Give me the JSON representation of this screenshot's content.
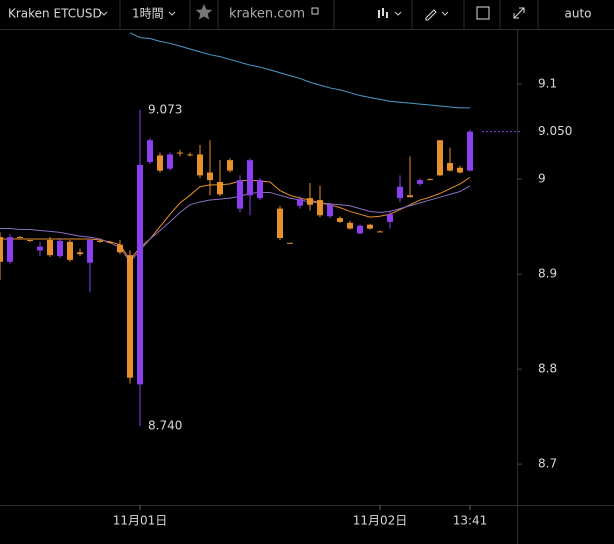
{
  "toolbar": {
    "symbol": "Kraken ETCUSD",
    "interval": "1時間",
    "site": "kraken.com",
    "scale": "auto"
  },
  "chart_data": {
    "type": "candlestick",
    "x": [
      null,
      null,
      null,
      null,
      null,
      null,
      null,
      null,
      null,
      null,
      null,
      null,
      null,
      null,
      "11月01日",
      null,
      null,
      null,
      null,
      null,
      null,
      null,
      null,
      null,
      null,
      null,
      null,
      null,
      null,
      null,
      null,
      null,
      null,
      null,
      null,
      null,
      null,
      null,
      "11月02日",
      null,
      null,
      null,
      null,
      null,
      null,
      null,
      null,
      "13:41"
    ],
    "open": [
      8.939,
      8.913,
      8.939,
      8.936,
      8.925,
      8.936,
      8.919,
      8.934,
      8.923,
      8.912,
      8.935,
      8.934,
      8.931,
      8.92,
      8.784,
      9.018,
      9.025,
      9.011,
      9.028,
      9.026,
      9.026,
      9.007,
      8.997,
      9.02,
      8.969,
      8.983,
      8.98,
      null,
      8.969,
      8.933,
      8.972,
      8.98,
      8.978,
      8.961,
      8.959,
      8.954,
      8.943,
      8.952,
      8.945,
      8.955,
      8.98,
      8.983,
      8.995,
      9.0,
      9.041,
      9.017,
      9.012,
      9.009
    ],
    "high": [
      8.944,
      8.942,
      8.94,
      8.936,
      8.934,
      8.939,
      8.938,
      8.936,
      8.927,
      8.938,
      8.936,
      8.935,
      8.936,
      8.925,
      9.073,
      9.043,
      9.028,
      9.028,
      9.031,
      9.028,
      9.036,
      9.041,
      9.02,
      9.022,
      9.004,
      9.022,
      9.001,
      null,
      8.972,
      8.933,
      8.982,
      8.996,
      8.993,
      8.975,
      8.961,
      8.956,
      8.952,
      8.953,
      8.946,
      8.967,
      9.004,
      9.024,
      9.001,
      9.001,
      9.041,
      9.033,
      9.014,
      9.052
    ],
    "low": [
      8.894,
      8.911,
      8.938,
      8.934,
      8.919,
      8.918,
      8.917,
      8.913,
      8.919,
      8.881,
      8.933,
      8.933,
      8.921,
      8.785,
      8.74,
      9.016,
      9.007,
      9.009,
      9.024,
      9.024,
      9.001,
      8.983,
      8.982,
      9.007,
      8.965,
      8.962,
      8.978,
      null,
      8.936,
      8.932,
      8.969,
      8.967,
      8.96,
      8.959,
      8.954,
      8.947,
      8.942,
      8.947,
      8.944,
      8.948,
      8.976,
      8.981,
      8.993,
      8.999,
      9.003,
      9.008,
      9.006,
      9.008
    ],
    "close": [
      8.913,
      8.939,
      8.938,
      8.935,
      8.929,
      8.92,
      8.935,
      8.915,
      8.921,
      8.936,
      8.934,
      8.933,
      8.923,
      8.791,
      9.015,
      9.041,
      9.009,
      9.026,
      9.027,
      9.025,
      9.004,
      8.999,
      8.984,
      9.009,
      8.999,
      9.02,
      8.999,
      null,
      8.938,
      8.932,
      8.979,
      8.973,
      8.962,
      8.973,
      8.955,
      8.948,
      8.951,
      8.948,
      8.944,
      8.963,
      8.992,
      8.981,
      8.999,
      8.999,
      9.004,
      9.009,
      9.007,
      9.05
    ],
    "up_color": "#8a3ff0",
    "down_color": "#e8902c",
    "series": [
      {
        "color": "#4a9cc8",
        "values": [
          null,
          null,
          null,
          null,
          null,
          null,
          null,
          null,
          null,
          null,
          null,
          null,
          null,
          9.154,
          9.149,
          9.148,
          9.145,
          9.143,
          9.14,
          9.137,
          9.134,
          9.131,
          9.129,
          9.126,
          9.123,
          9.12,
          9.118,
          9.115,
          9.112,
          9.109,
          9.106,
          9.102,
          9.099,
          9.096,
          9.094,
          9.091,
          9.088,
          9.086,
          9.084,
          9.082,
          9.081,
          9.08,
          9.079,
          9.078,
          9.077,
          9.076,
          9.075,
          9.075
        ]
      },
      {
        "color": "#e8902c",
        "values": [
          8.937,
          8.937,
          8.937,
          8.937,
          8.937,
          8.937,
          8.937,
          8.937,
          8.937,
          8.937,
          8.936,
          8.934,
          8.931,
          8.915,
          8.928,
          8.937,
          8.95,
          8.963,
          8.975,
          8.983,
          8.992,
          8.994,
          8.994,
          8.995,
          8.998,
          8.999,
          8.998,
          8.997,
          8.988,
          8.983,
          8.98,
          8.978,
          8.975,
          8.973,
          8.97,
          8.966,
          8.963,
          8.96,
          8.961,
          8.963,
          8.968,
          8.973,
          8.978,
          8.981,
          8.985,
          8.99,
          8.995,
          9.002
        ]
      },
      {
        "color": "#8a6fc0",
        "values": [
          8.948,
          8.948,
          8.947,
          8.947,
          8.946,
          8.945,
          8.944,
          8.942,
          8.94,
          8.939,
          8.937,
          8.933,
          8.928,
          8.913,
          8.925,
          8.937,
          8.946,
          8.955,
          8.965,
          8.973,
          8.976,
          8.978,
          8.979,
          8.98,
          8.982,
          8.985,
          8.986,
          8.986,
          8.983,
          8.98,
          8.978,
          8.976,
          8.975,
          8.974,
          8.973,
          8.972,
          8.969,
          8.966,
          8.965,
          8.966,
          8.969,
          8.972,
          8.975,
          8.978,
          8.981,
          8.984,
          8.987,
          8.993
        ]
      }
    ],
    "ylim": [
      8.657,
      9.157
    ],
    "yticks": [
      8.7,
      8.8,
      8.9,
      9,
      9.1
    ],
    "last_price": {
      "value": 9.05,
      "label": "9.050"
    },
    "annotations": [
      {
        "value": 9.073,
        "label": "9.073"
      },
      {
        "value": 8.74,
        "label": "8.740"
      }
    ]
  }
}
